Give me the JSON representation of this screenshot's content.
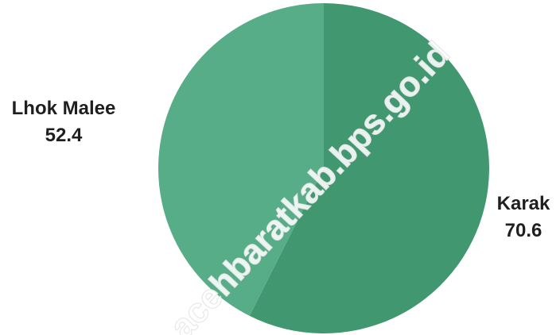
{
  "chart_data": {
    "type": "pie",
    "slices": [
      {
        "label": "Karak",
        "value": 70.6,
        "value_text": "70.6",
        "color": "#419770"
      },
      {
        "label": "Lhok Malee",
        "value": 52.4,
        "value_text": "52.4",
        "color": "#58ad89"
      }
    ],
    "start_angle_deg": 0,
    "direction": "clockwise"
  },
  "watermark": "acehbaratkab.bps.go.id"
}
